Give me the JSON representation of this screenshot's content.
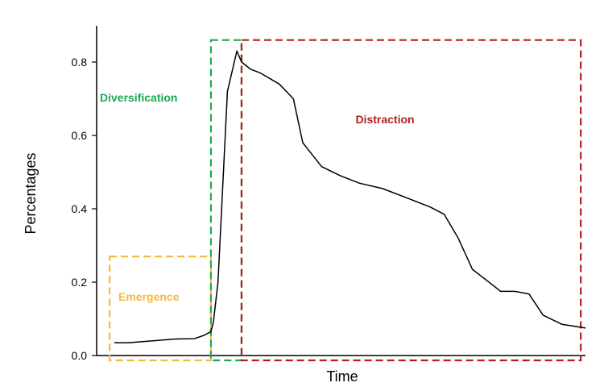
{
  "chart_data": {
    "type": "line",
    "title": "",
    "xlabel": "Time",
    "ylabel": "Percentages",
    "xlim": [
      0,
      1
    ],
    "ylim": [
      0,
      0.9
    ],
    "yticks": [
      "0.0",
      "0.2",
      "0.4",
      "0.6",
      "0.8"
    ],
    "grid": false,
    "series": [
      {
        "x": [
          0,
          0.03,
          0.06,
          0.13,
          0.17,
          0.19,
          0.205,
          0.21,
          0.22,
          0.24,
          0.26,
          0.27,
          0.29,
          0.31,
          0.35,
          0.38,
          0.4,
          0.44,
          0.48,
          0.52,
          0.57,
          0.62,
          0.67,
          0.7,
          0.73,
          0.76,
          0.79,
          0.82,
          0.85,
          0.88,
          0.91,
          0.95,
          1.0
        ],
        "values": [
          0.035,
          0.035,
          0.038,
          0.045,
          0.046,
          0.055,
          0.065,
          0.09,
          0.2,
          0.72,
          0.83,
          0.8,
          0.78,
          0.77,
          0.74,
          0.7,
          0.58,
          0.515,
          0.49,
          0.47,
          0.455,
          0.43,
          0.405,
          0.385,
          0.32,
          0.235,
          0.205,
          0.175,
          0.175,
          0.168,
          0.11,
          0.085,
          0.075
        ]
      }
    ],
    "regions": [
      {
        "label": "Emergence",
        "color": "#f5b942",
        "x": [
          -0.01,
          0.205
        ],
        "y": [
          0,
          0.27
        ]
      },
      {
        "label": "Diversification",
        "color": "#1aaa55",
        "x": [
          0.205,
          0.27
        ],
        "y": [
          0,
          0.86
        ]
      },
      {
        "label": "Distraction",
        "color": "#b51f1f",
        "x": [
          0.27,
          0.99
        ],
        "y": [
          0,
          0.86
        ]
      }
    ]
  }
}
